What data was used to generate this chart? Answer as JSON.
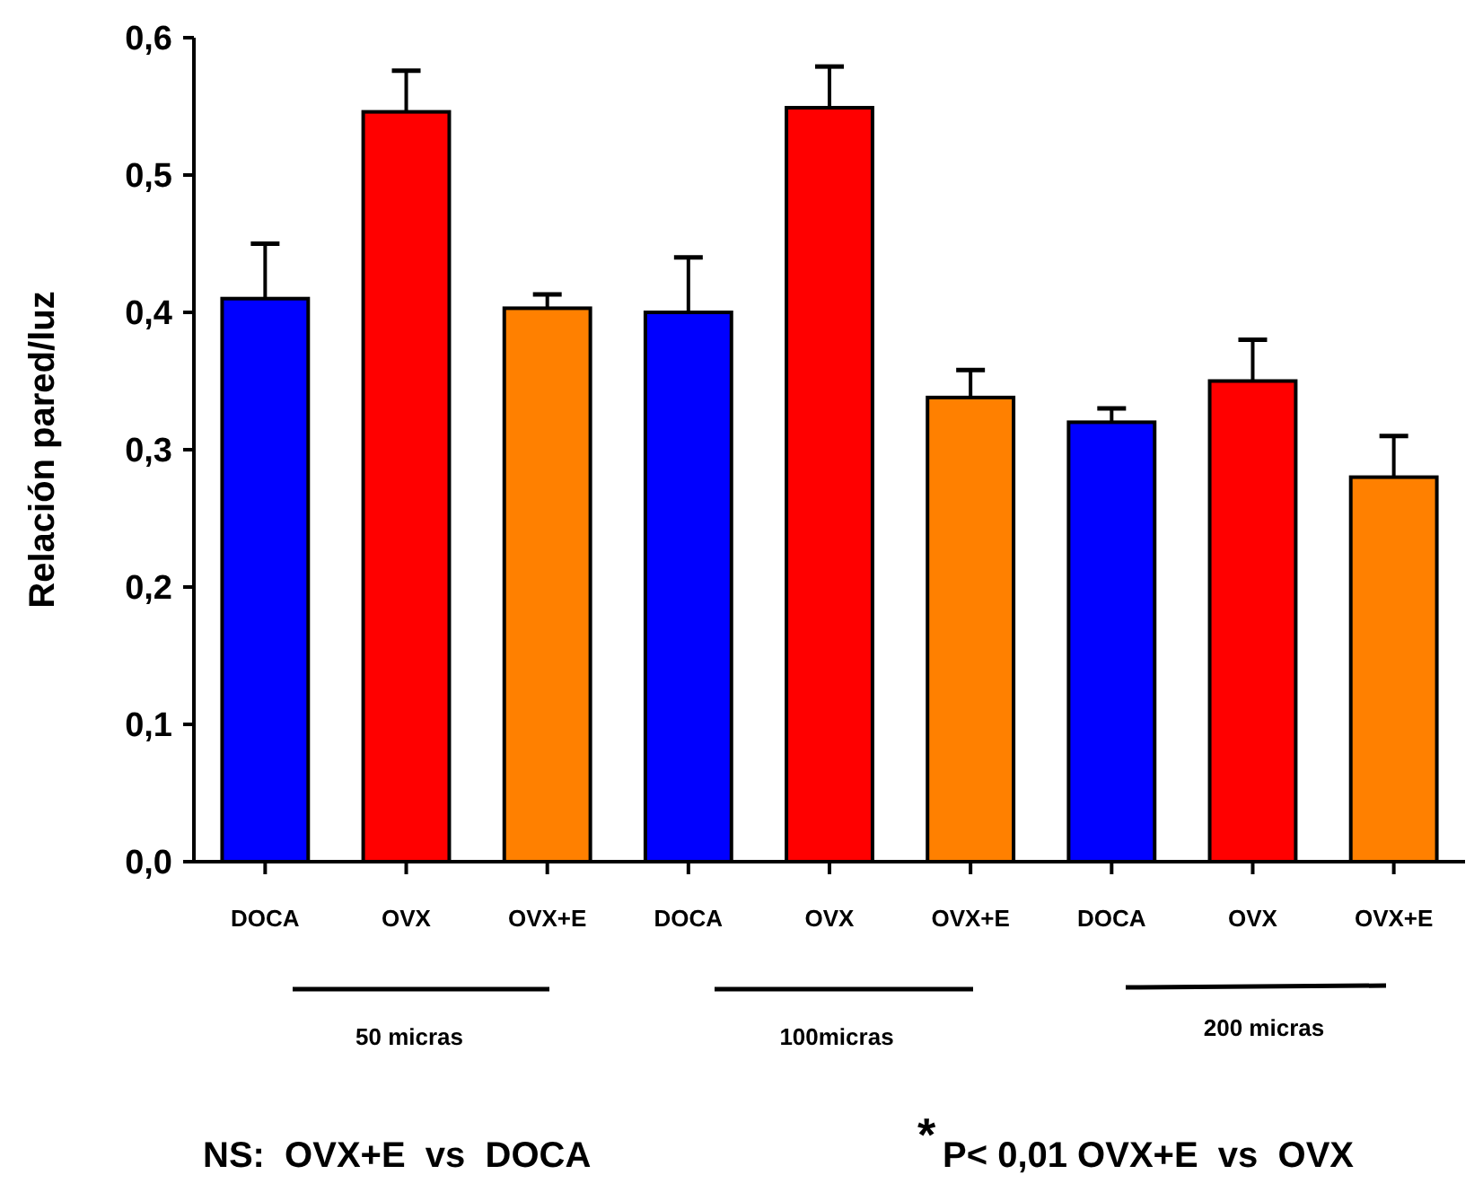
{
  "chart_data": {
    "type": "bar",
    "ylabel": "Relación pared/luz",
    "categories": [
      "DOCA",
      "OVX",
      "OVX+E",
      "DOCA",
      "OVX",
      "OVX+E",
      "DOCA",
      "OVX",
      "OVX+E"
    ],
    "values": [
      0.41,
      0.546,
      0.403,
      0.4,
      0.549,
      0.338,
      0.32,
      0.35,
      0.28
    ],
    "errors": [
      0.04,
      0.03,
      0.01,
      0.04,
      0.03,
      0.02,
      0.01,
      0.03,
      0.03
    ],
    "colors": [
      "#0000ff",
      "#ff0000",
      "#ff8000",
      "#0000ff",
      "#ff0000",
      "#ff8000",
      "#0000ff",
      "#ff0000",
      "#ff8000"
    ],
    "ylim": [
      0,
      0.6
    ],
    "yticks": [
      {
        "value": 0,
        "label": "0,0"
      },
      {
        "value": 0.1,
        "label": "0,1"
      },
      {
        "value": 0.2,
        "label": "0,2"
      },
      {
        "value": 0.3,
        "label": "0,3"
      },
      {
        "value": 0.4,
        "label": "0,4"
      },
      {
        "value": 0.5,
        "label": "0,5"
      },
      {
        "value": 0.6,
        "label": "0,6"
      }
    ],
    "grid": false,
    "annotations": [
      "50 micras",
      "100micras",
      "200 micras",
      "NS:  OVX+E  vs  DOCA",
      "*",
      "P< 0,01 OVX+E  vs  OVX"
    ]
  }
}
